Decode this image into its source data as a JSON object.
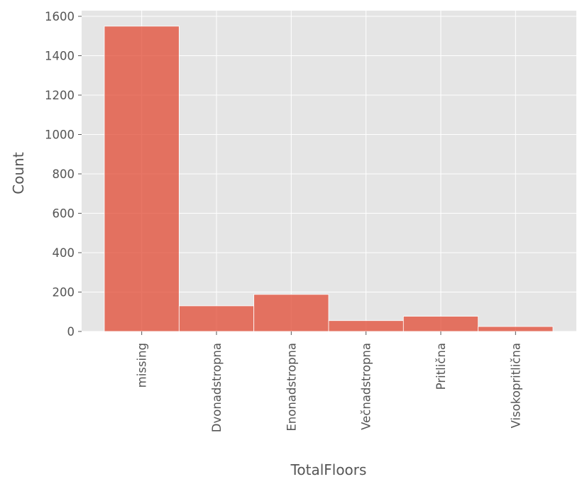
{
  "chart_data": {
    "type": "bar",
    "title": "",
    "xlabel": "TotalFloors",
    "ylabel": "Count",
    "categories": [
      "missing",
      "Dvonadstropna",
      "Enonadstropna",
      "Večnadstropna",
      "Pritlična",
      "Visokopritlična"
    ],
    "values": [
      1550,
      130,
      188,
      55,
      77,
      25
    ],
    "ylim": [
      0,
      1600
    ],
    "yticks": [
      0,
      200,
      400,
      600,
      800,
      1000,
      1200,
      1400,
      1600
    ],
    "grid": true,
    "legend": "none",
    "colors": {
      "bar": "#e24a33",
      "background": "#e5e5e5",
      "grid": "#ffffff",
      "text": "#555555"
    }
  }
}
